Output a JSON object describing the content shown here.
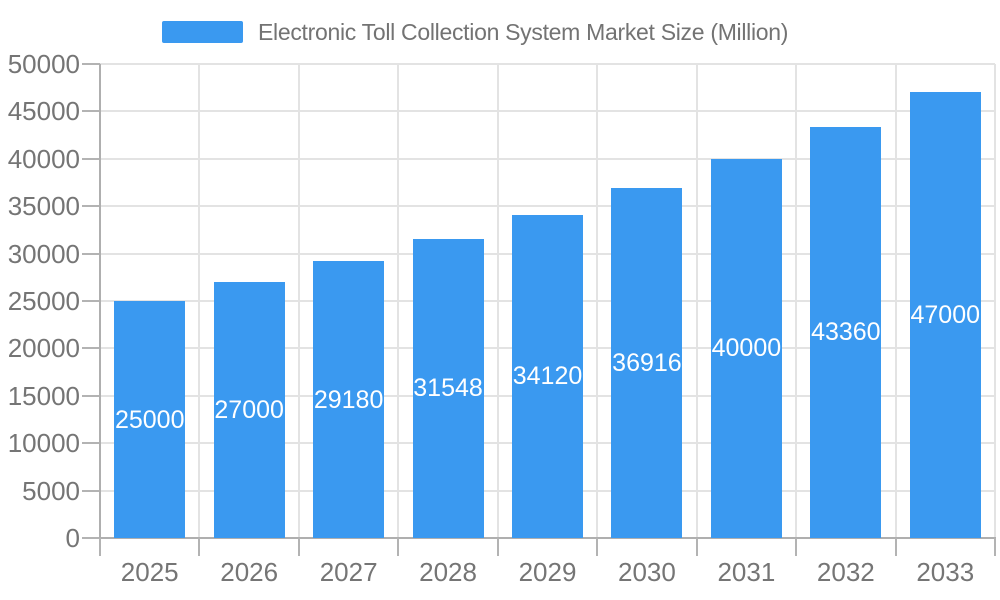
{
  "legend": {
    "label": "Electronic Toll Collection System Market Size (Million)"
  },
  "chart_data": {
    "type": "bar",
    "title": "Electronic Toll Collection System Market Size (Million)",
    "categories": [
      "2025",
      "2026",
      "2027",
      "2028",
      "2029",
      "2030",
      "2031",
      "2032",
      "2033"
    ],
    "series": [
      {
        "name": "Electronic Toll Collection System Market Size (Million)",
        "values": [
          25000,
          27000,
          29180,
          31548,
          34120,
          36916,
          40000,
          43360,
          47000
        ]
      }
    ],
    "xlabel": "",
    "ylabel": "",
    "ylim": [
      0,
      50000
    ],
    "ytick_step": 5000,
    "ytick_labels": [
      "0",
      "5000",
      "10000",
      "15000",
      "20000",
      "25000",
      "30000",
      "35000",
      "40000",
      "45000",
      "50000"
    ],
    "grid": true,
    "legend_position": "top",
    "data_label_position": "inside-center",
    "colors": {
      "bar": "#3A99F0",
      "data_label": "#FFFFFF",
      "axis_line": "#AFAFAF",
      "tick": "#B3B3B3",
      "gridline": "#E3E3E3",
      "axis_text": "#757575",
      "legend_text": "#737373",
      "background": "#FFFFFF"
    }
  }
}
